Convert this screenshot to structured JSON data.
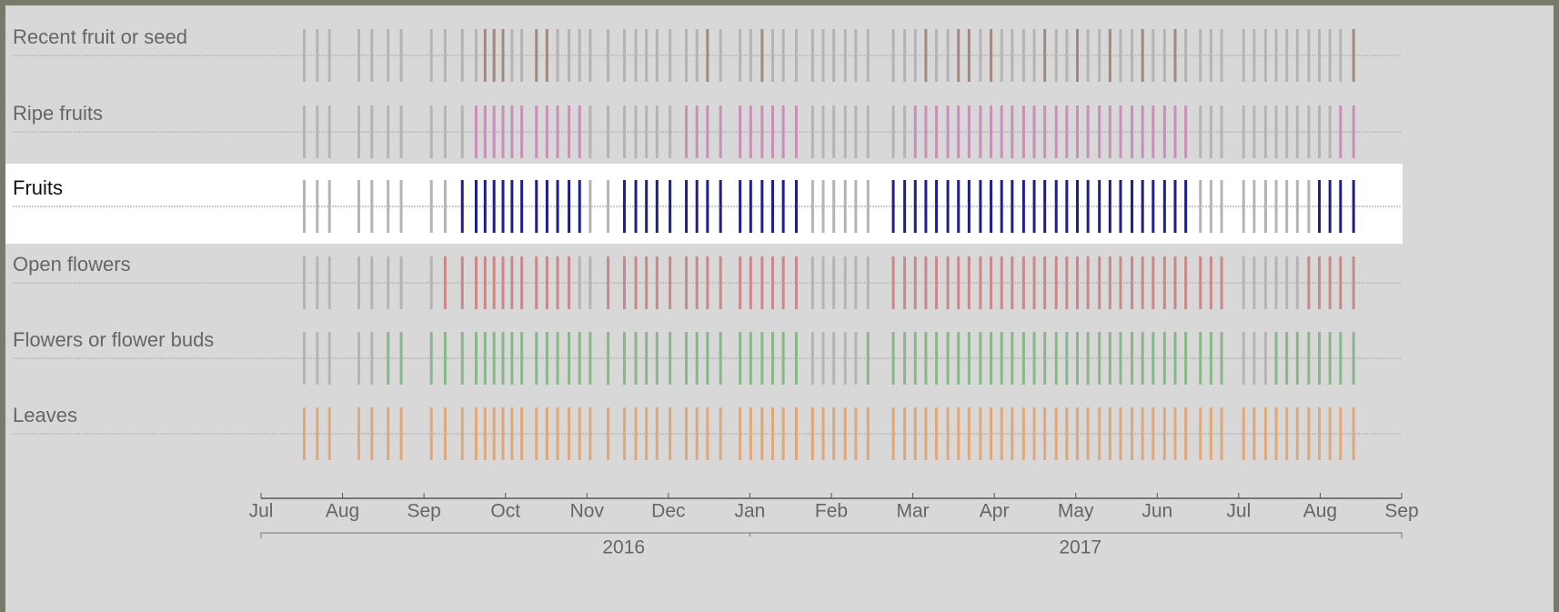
{
  "chart_data": {
    "type": "strip",
    "series": [
      {
        "name": "Recent fruit or seed",
        "color": "#a08a80",
        "values": [
          0,
          0,
          0,
          0,
          0,
          0,
          0,
          0,
          0,
          0,
          0,
          1,
          1,
          1,
          0,
          0,
          1,
          1,
          0,
          0,
          0,
          0,
          0,
          0,
          0,
          0,
          0,
          0,
          0,
          0,
          1,
          0,
          0,
          0,
          1,
          0,
          0,
          0,
          0,
          0,
          0,
          0,
          0,
          0,
          0,
          0,
          0,
          1,
          0,
          0,
          1,
          1,
          0,
          1,
          0,
          0,
          0,
          0,
          1,
          0,
          0,
          1,
          0,
          0,
          1,
          0,
          0,
          1,
          0,
          0,
          1,
          0,
          0,
          0,
          0,
          0,
          0,
          0,
          0,
          0,
          0,
          0,
          0,
          0,
          0,
          1
        ]
      },
      {
        "name": "Ripe fruits",
        "color": "#c890b8",
        "values": [
          0,
          0,
          0,
          0,
          0,
          0,
          0,
          0,
          0,
          0,
          1,
          1,
          1,
          1,
          1,
          1,
          1,
          1,
          1,
          1,
          1,
          0,
          0,
          0,
          0,
          0,
          0,
          0,
          1,
          1,
          1,
          1,
          1,
          1,
          1,
          1,
          1,
          1,
          0,
          0,
          0,
          0,
          0,
          0,
          0,
          0,
          1,
          1,
          1,
          1,
          1,
          1,
          1,
          1,
          1,
          1,
          1,
          1,
          1,
          1,
          1,
          1,
          1,
          1,
          1,
          1,
          1,
          1,
          1,
          1,
          1,
          1,
          0,
          0,
          0,
          0,
          0,
          0,
          0,
          0,
          0,
          0,
          0,
          0,
          1,
          1
        ]
      },
      {
        "name": "Fruits",
        "color": "#1f1f8c",
        "values": [
          0,
          0,
          0,
          0,
          0,
          0,
          0,
          0,
          0,
          1,
          1,
          1,
          1,
          1,
          1,
          1,
          1,
          1,
          1,
          1,
          1,
          0,
          0,
          1,
          1,
          1,
          1,
          1,
          1,
          1,
          1,
          1,
          1,
          1,
          1,
          1,
          1,
          1,
          0,
          0,
          0,
          0,
          0,
          0,
          1,
          1,
          1,
          1,
          1,
          1,
          1,
          1,
          1,
          1,
          1,
          1,
          1,
          1,
          1,
          1,
          1,
          1,
          1,
          1,
          1,
          1,
          1,
          1,
          1,
          1,
          1,
          1,
          0,
          0,
          0,
          0,
          0,
          0,
          0,
          0,
          0,
          0,
          1,
          1,
          1,
          1
        ]
      },
      {
        "name": "Open flowers",
        "color": "#cc8888",
        "values": [
          0,
          0,
          0,
          0,
          0,
          0,
          0,
          0,
          1,
          1,
          1,
          1,
          1,
          1,
          1,
          1,
          1,
          1,
          1,
          1,
          0,
          0,
          1,
          1,
          1,
          1,
          1,
          1,
          1,
          1,
          1,
          1,
          1,
          1,
          1,
          1,
          1,
          1,
          0,
          0,
          0,
          0,
          0,
          0,
          1,
          1,
          1,
          1,
          1,
          1,
          1,
          1,
          1,
          1,
          1,
          1,
          1,
          1,
          1,
          1,
          1,
          1,
          1,
          1,
          1,
          1,
          1,
          1,
          1,
          1,
          1,
          1,
          1,
          1,
          1,
          0,
          0,
          0,
          0,
          0,
          0,
          1,
          1,
          1,
          1,
          1
        ]
      },
      {
        "name": "Flowers or flower buds",
        "color": "#88b888",
        "values": [
          0,
          0,
          0,
          0,
          0,
          1,
          1,
          1,
          1,
          1,
          1,
          1,
          1,
          1,
          1,
          1,
          1,
          1,
          1,
          1,
          1,
          1,
          1,
          1,
          1,
          1,
          1,
          1,
          1,
          1,
          1,
          1,
          1,
          1,
          1,
          1,
          1,
          1,
          0,
          0,
          0,
          0,
          0,
          1,
          1,
          1,
          1,
          1,
          1,
          1,
          1,
          1,
          1,
          1,
          1,
          1,
          1,
          1,
          1,
          1,
          1,
          1,
          1,
          1,
          1,
          1,
          1,
          1,
          1,
          1,
          1,
          1,
          1,
          1,
          1,
          0,
          0,
          0,
          1,
          1,
          1,
          1,
          1,
          1,
          1,
          1
        ]
      },
      {
        "name": "Leaves",
        "color": "#e0a878",
        "values": [
          1,
          1,
          1,
          1,
          1,
          1,
          1,
          1,
          1,
          1,
          1,
          1,
          1,
          1,
          1,
          1,
          1,
          1,
          1,
          1,
          1,
          1,
          1,
          1,
          1,
          1,
          1,
          1,
          1,
          1,
          1,
          1,
          1,
          1,
          1,
          1,
          1,
          1,
          1,
          1,
          1,
          1,
          1,
          1,
          1,
          1,
          1,
          1,
          1,
          1,
          1,
          1,
          1,
          1,
          1,
          1,
          1,
          1,
          1,
          1,
          1,
          1,
          1,
          1,
          1,
          1,
          1,
          1,
          1,
          1,
          1,
          1,
          1,
          1,
          1,
          1,
          1,
          1,
          1,
          1,
          1,
          1,
          1,
          1,
          1,
          1
        ]
      }
    ],
    "x": [
      0.53,
      0.69,
      0.84,
      1.2,
      1.36,
      1.56,
      1.72,
      2.09,
      2.26,
      2.47,
      2.64,
      2.75,
      2.86,
      2.97,
      3.08,
      3.2,
      3.38,
      3.51,
      3.64,
      3.78,
      3.91,
      4.04,
      4.26,
      4.46,
      4.6,
      4.73,
      4.86,
      5.02,
      5.22,
      5.35,
      5.48,
      5.64,
      5.88,
      6.01,
      6.15,
      6.28,
      6.41,
      6.57,
      6.77,
      6.9,
      7.03,
      7.17,
      7.3,
      7.45,
      7.76,
      7.9,
      8.03,
      8.16,
      8.29,
      8.43,
      8.56,
      8.69,
      8.83,
      8.96,
      9.09,
      9.22,
      9.36,
      9.49,
      9.62,
      9.76,
      9.89,
      10.02,
      10.15,
      10.29,
      10.42,
      10.55,
      10.69,
      10.82,
      10.95,
      11.09,
      11.22,
      11.35,
      11.53,
      11.66,
      11.79,
      12.06,
      12.19,
      12.33,
      12.46,
      12.59,
      12.72,
      12.86,
      12.99,
      13.12,
      13.25,
      13.41
    ],
    "xlim": [
      0,
      14
    ],
    "xticks": [
      {
        "value": 0,
        "label": "Jul"
      },
      {
        "value": 1,
        "label": "Aug"
      },
      {
        "value": 2,
        "label": "Sep"
      },
      {
        "value": 3,
        "label": "Oct"
      },
      {
        "value": 4,
        "label": "Nov"
      },
      {
        "value": 5,
        "label": "Dec"
      },
      {
        "value": 6,
        "label": "Jan"
      },
      {
        "value": 7,
        "label": "Feb"
      },
      {
        "value": 8,
        "label": "Mar"
      },
      {
        "value": 9,
        "label": "Apr"
      },
      {
        "value": 10,
        "label": "May"
      },
      {
        "value": 11,
        "label": "Jun"
      },
      {
        "value": 12,
        "label": "Jul"
      },
      {
        "value": 13,
        "label": "Aug"
      },
      {
        "value": 14,
        "label": "Sep"
      }
    ],
    "year_labels": [
      "2016",
      "2017"
    ],
    "absent_color": "#b4b4b4",
    "highlight": 2
  }
}
